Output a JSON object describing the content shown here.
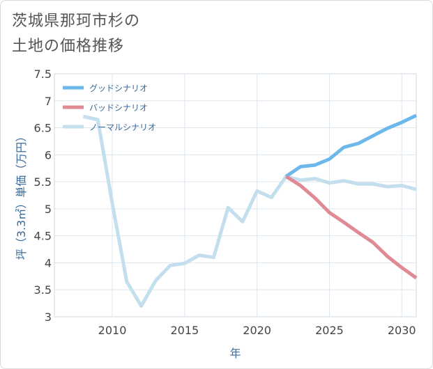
{
  "title_lines": [
    "茨城県那珂市杉の",
    "土地の価格推移"
  ],
  "chart_data": {
    "type": "line",
    "title": "茨城県那珂市杉の土地の価格推移",
    "xlabel": "年",
    "ylabel": "坪（3.3㎡）単価（万円）",
    "xlim": [
      2006,
      2031
    ],
    "ylim": [
      3,
      7.5
    ],
    "x_ticks": [
      2010,
      2015,
      2020,
      2025,
      2030
    ],
    "y_ticks": [
      3,
      3.5,
      4,
      4.5,
      5,
      5.5,
      6,
      6.5,
      7,
      7.5
    ],
    "y_tick_labels": [
      "3",
      "3.5",
      "4",
      "4.5",
      "5",
      "5.5",
      "6",
      "6.5",
      "7",
      "7.5"
    ],
    "grid": true,
    "legend_position": "top-left",
    "series": [
      {
        "name": "グッドシナリオ",
        "color": "#6db8ea",
        "x": [
          2022,
          2023,
          2024,
          2025,
          2026,
          2027,
          2028,
          2029,
          2030,
          2031
        ],
        "values": [
          5.6,
          5.78,
          5.81,
          5.92,
          6.14,
          6.21,
          6.35,
          6.49,
          6.6,
          6.73
        ]
      },
      {
        "name": "バッドシナリオ",
        "color": "#e08a94",
        "x": [
          2022,
          2023,
          2024,
          2025,
          2026,
          2027,
          2028,
          2029,
          2030,
          2031
        ],
        "values": [
          5.6,
          5.43,
          5.2,
          4.93,
          4.75,
          4.56,
          4.38,
          4.12,
          3.91,
          3.72
        ]
      },
      {
        "name": "ノーマルシナリオ",
        "color": "#c3deed",
        "x": [
          2008,
          2009,
          2010,
          2011,
          2012,
          2013,
          2014,
          2015,
          2016,
          2017,
          2018,
          2019,
          2020,
          2021,
          2022,
          2023,
          2024,
          2025,
          2026,
          2027,
          2028,
          2029,
          2030,
          2031
        ],
        "values": [
          6.71,
          6.65,
          5.1,
          3.65,
          3.2,
          3.67,
          3.95,
          3.99,
          4.14,
          4.1,
          5.02,
          4.76,
          5.33,
          5.21,
          5.6,
          5.53,
          5.56,
          5.48,
          5.52,
          5.46,
          5.46,
          5.41,
          5.43,
          5.36
        ]
      }
    ]
  }
}
